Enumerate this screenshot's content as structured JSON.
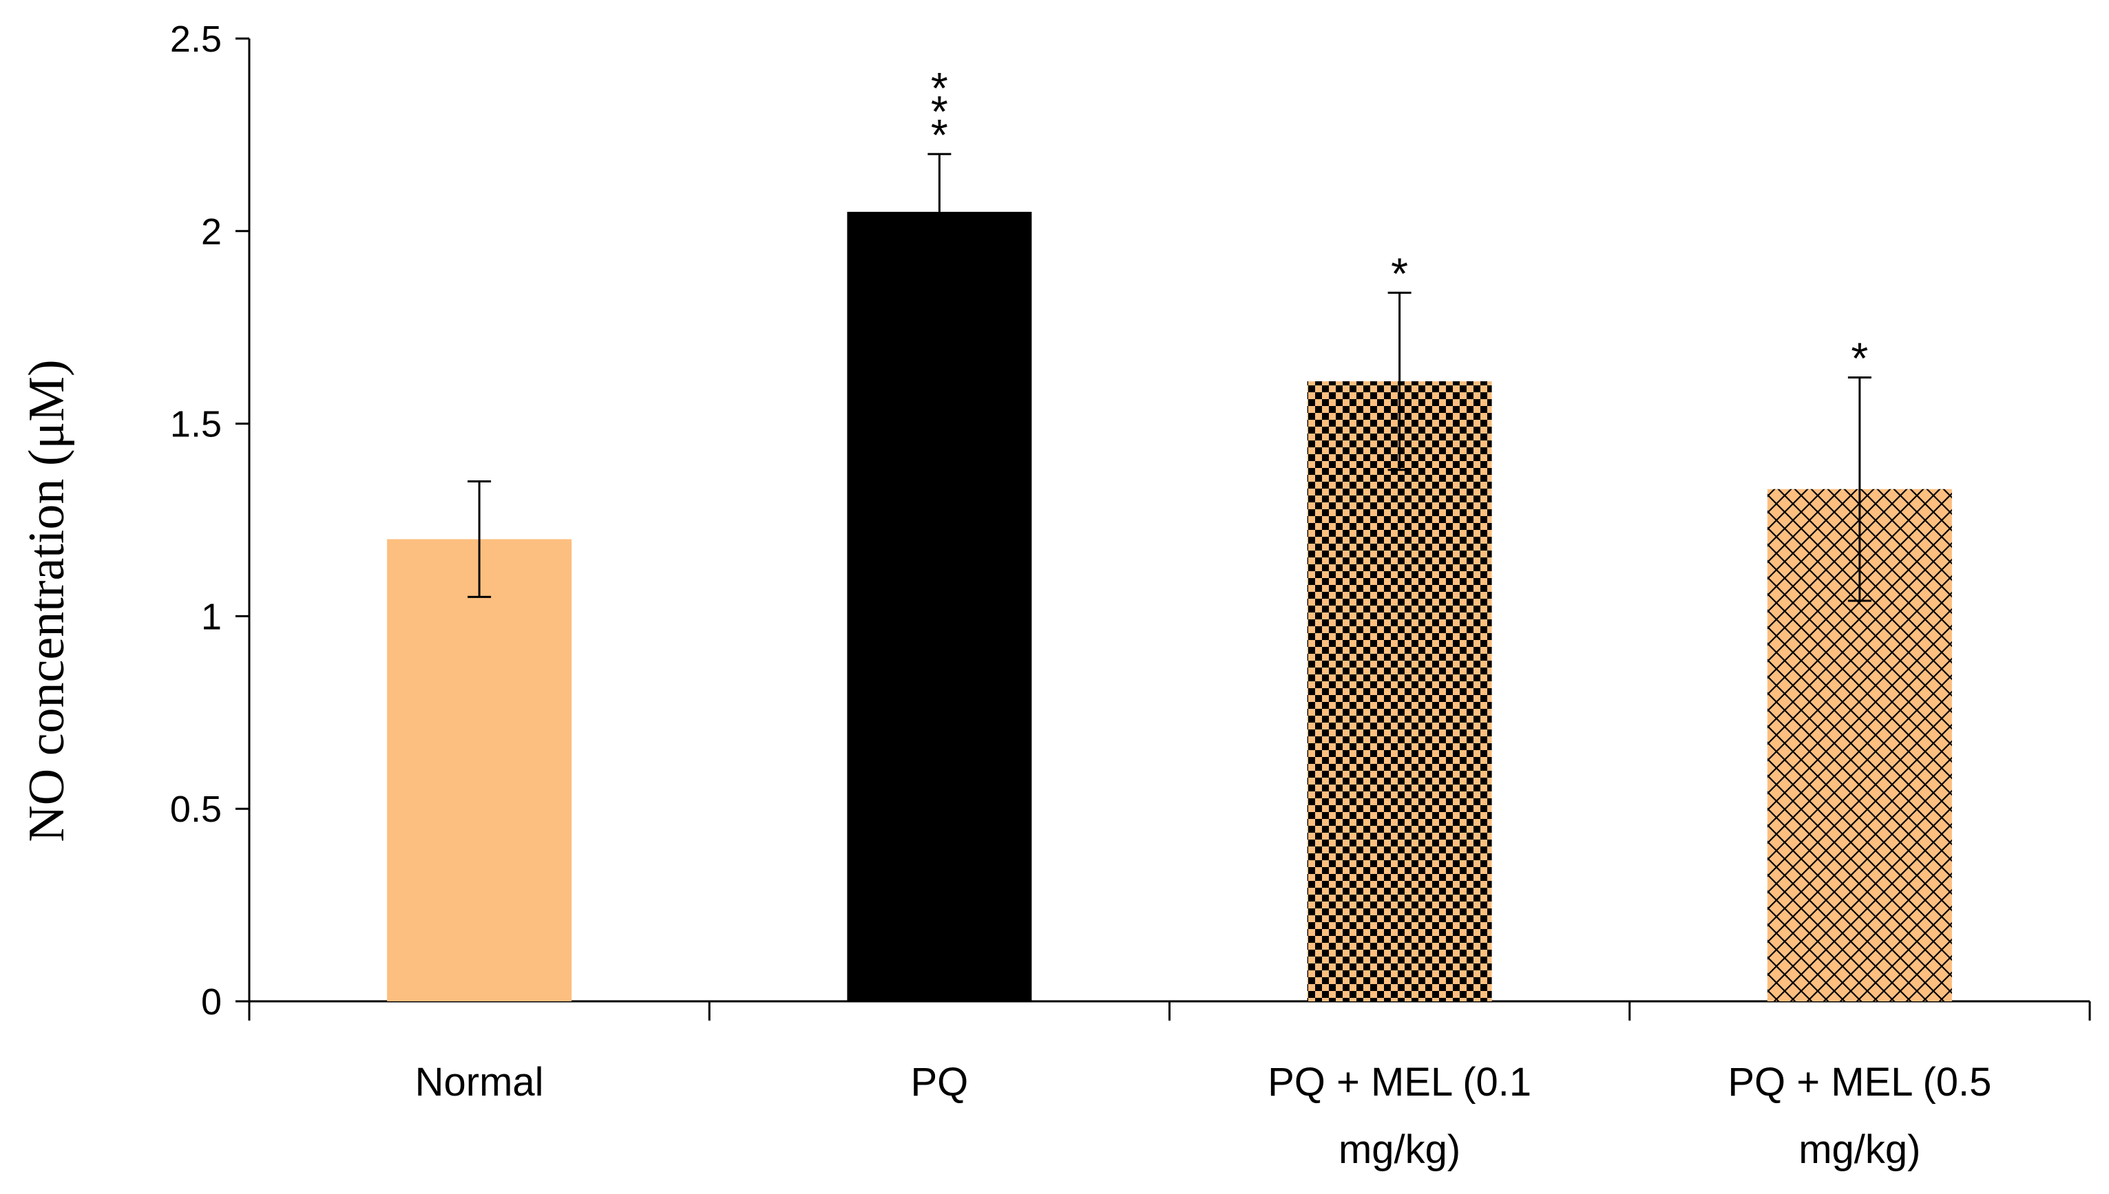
{
  "chart_data": {
    "type": "bar",
    "title": "",
    "xlabel": "",
    "ylabel": "NO concentration (μM)",
    "ylim": [
      0,
      2.5
    ],
    "yticks": [
      "0",
      "0.5",
      "1",
      "1.5",
      "2",
      "2.5"
    ],
    "grid": false,
    "categories": [
      {
        "line1": "Normal",
        "line2": ""
      },
      {
        "line1": "PQ",
        "line2": ""
      },
      {
        "line1": "PQ + MEL (0.1",
        "line2": "mg/kg)"
      },
      {
        "line1": "PQ + MEL (0.5",
        "line2": "mg/kg)"
      }
    ],
    "values": [
      1.2,
      2.05,
      1.61,
      1.33
    ],
    "errors": [
      0.15,
      0.15,
      0.23,
      0.29
    ],
    "significance": [
      "",
      "***",
      "*",
      "*"
    ],
    "bar_styles": [
      {
        "fill": "#FDBF7F",
        "pattern": "solid"
      },
      {
        "fill": "#000000",
        "pattern": "solid"
      },
      {
        "fill": "#FDBF7F",
        "pattern": "checker"
      },
      {
        "fill": "#FDBF7F",
        "pattern": "crosshatch"
      }
    ]
  }
}
